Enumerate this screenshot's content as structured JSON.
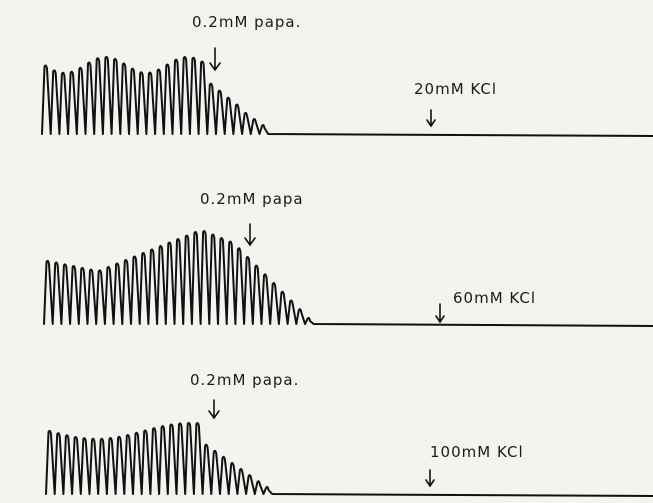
{
  "panels": [
    {
      "drug_label": "0.2mM papa.",
      "kcl_label": "20mM KCl"
    },
    {
      "drug_label": "0.2mM papa",
      "kcl_label": "60mM KCl"
    },
    {
      "drug_label": "0.2mM papa.",
      "kcl_label": "100mM KCl"
    }
  ]
}
